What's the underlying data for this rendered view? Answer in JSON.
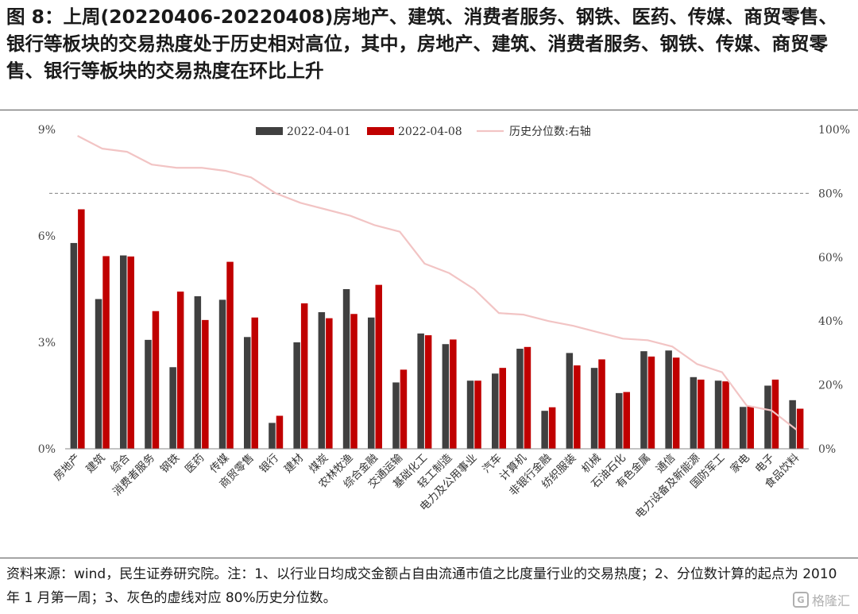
{
  "figure": {
    "title": "图 8：上周(20220406-20220408)房地产、建筑、消费者服务、钢铁、医药、传媒、商贸零售、银行等板块的交易热度处于历史相对高位，其中，房地产、建筑、消费者服务、钢铁、传媒、商贸零售、银行等板块的交易热度在环比上升",
    "source": "资料来源：wind，民生证券研究院。注：1、以行业日均成交金额占自由流通市值之比度量行业的交易热度；2、分位数计算的起点为 2010 年 1 月第一周；3、灰色的虚线对应 80%历史分位数。",
    "watermark": "格隆汇"
  },
  "colors": {
    "series1": "#404040",
    "series2": "#c00000",
    "percentile_line": "#f2c4c4",
    "reference_line": "#808080"
  },
  "chart_data": {
    "type": "bar",
    "categories": [
      "房地产",
      "建筑",
      "综合",
      "消费者服务",
      "钢铁",
      "医药",
      "传媒",
      "商贸零售",
      "银行",
      "建材",
      "煤炭",
      "农林牧渔",
      "综合金融",
      "交通运输",
      "基础化工",
      "轻工制造",
      "电力及公用事业",
      "汽车",
      "计算机",
      "非银行金融",
      "纺织服装",
      "机械",
      "石油石化",
      "有色金属",
      "通信",
      "电力设备及新能源",
      "国防军工",
      "家电",
      "电子",
      "食品饮料"
    ],
    "series": [
      {
        "name": "2022-04-01",
        "axis": "left",
        "values": [
          5.8,
          4.22,
          5.45,
          3.07,
          2.3,
          4.3,
          4.2,
          3.15,
          0.73,
          3.0,
          3.85,
          4.5,
          3.7,
          1.87,
          3.25,
          2.95,
          1.92,
          2.12,
          2.82,
          1.07,
          2.7,
          2.28,
          1.57,
          2.75,
          2.77,
          2.02,
          1.92,
          1.18,
          1.78,
          1.37
        ]
      },
      {
        "name": "2022-04-08",
        "axis": "left",
        "values": [
          6.75,
          5.43,
          5.42,
          3.88,
          4.43,
          3.63,
          5.27,
          3.7,
          0.93,
          4.1,
          3.68,
          3.8,
          4.62,
          2.23,
          3.2,
          3.08,
          1.92,
          2.28,
          2.87,
          1.17,
          2.35,
          2.52,
          1.6,
          2.6,
          2.57,
          1.95,
          1.9,
          1.2,
          1.95,
          1.13
        ]
      },
      {
        "name": "历史分位数:右轴",
        "type": "line",
        "axis": "right",
        "values": [
          98,
          94,
          93,
          89,
          88,
          88,
          87,
          85,
          80,
          77,
          75,
          73,
          70,
          68,
          58,
          55,
          50,
          42.5,
          42,
          40,
          38.5,
          36.5,
          34.5,
          34,
          32,
          26.5,
          24,
          13.5,
          12,
          6
        ]
      }
    ],
    "y_left": {
      "ticks": [
        "0%",
        "3%",
        "6%",
        "9%"
      ],
      "tick_values": [
        0,
        3,
        6,
        9
      ],
      "range": [
        0,
        9
      ]
    },
    "y_right": {
      "ticks": [
        "0%",
        "20%",
        "40%",
        "60%",
        "80%",
        "100%"
      ],
      "tick_values": [
        0,
        20,
        40,
        60,
        80,
        100
      ],
      "range": [
        0,
        100
      ]
    },
    "reference_line": {
      "axis": "right",
      "value": 80,
      "style": "dashed"
    },
    "legend_position": "top"
  }
}
